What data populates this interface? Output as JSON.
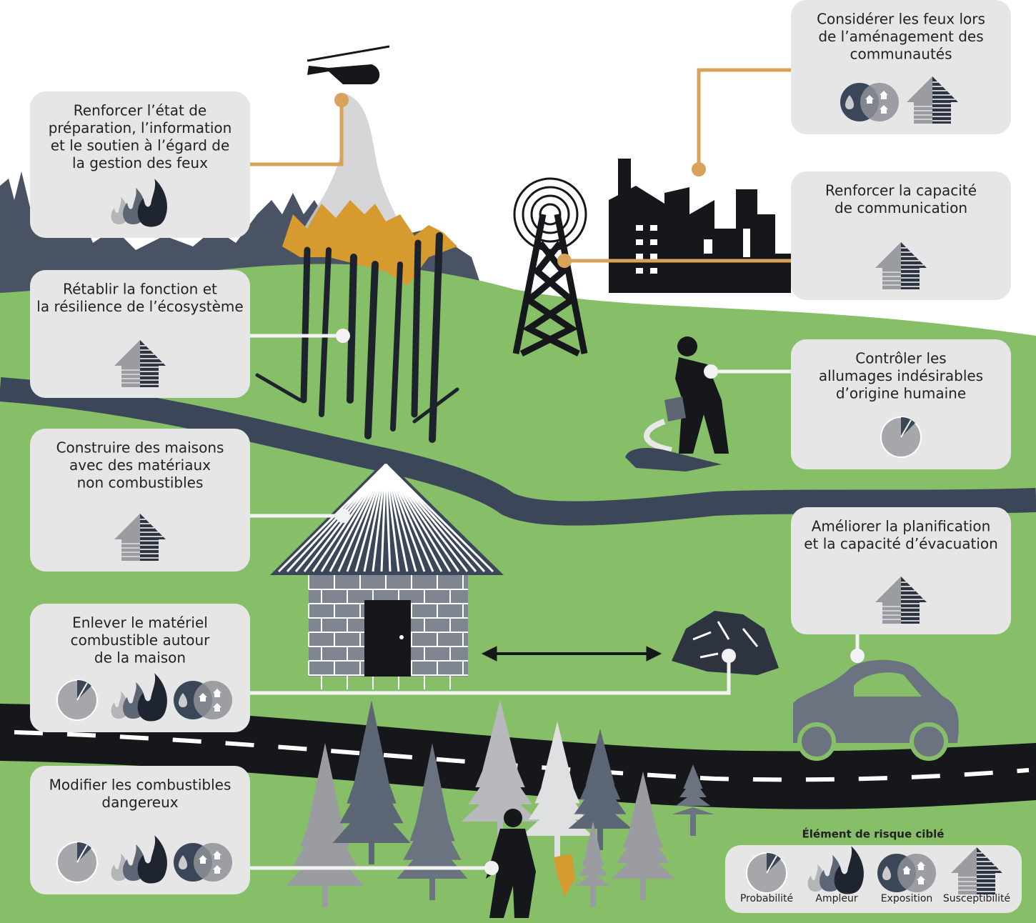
{
  "boxes": [
    {
      "lines": [
        "Renforcer l’état de",
        "préparation, l’information",
        "et le soutien à l’égard de",
        "la gestion des feux"
      ]
    },
    {
      "lines": [
        "Rétablir la fonction et",
        "la résilience de l’écosystème"
      ]
    },
    {
      "lines": [
        "Construire des maisons",
        "avec des matériaux",
        "non combustibles"
      ]
    },
    {
      "lines": [
        "Enlever le matériel",
        "combustible autour",
        "de la maison"
      ]
    },
    {
      "lines": [
        "Modifier les combustibles",
        "dangereux"
      ]
    },
    {
      "lines": [
        "Considérer les feux lors",
        "de l’aménagement des",
        "communautés"
      ]
    },
    {
      "lines": [
        "Renforcer la capacité",
        "de communication"
      ]
    },
    {
      "lines": [
        "Contrôler les",
        "allumages indésirables",
        "d’origine humaine"
      ]
    },
    {
      "lines": [
        "Améliorer la planification",
        "et la capacité d’évacuation"
      ]
    }
  ],
  "legend": {
    "title": "Élément de risque ciblé",
    "items": [
      "Probabilité",
      "Ampleur",
      "Exposition",
      "Susceptibilité"
    ]
  }
}
